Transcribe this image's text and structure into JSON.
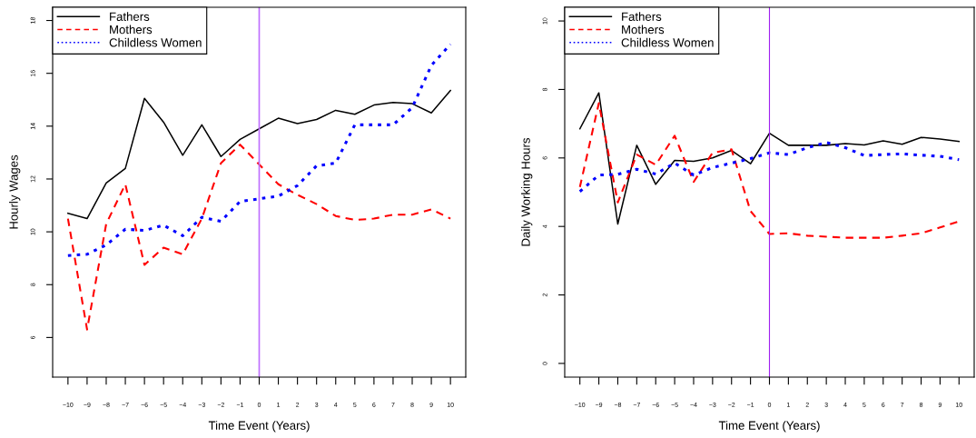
{
  "chart_data": [
    {
      "type": "line",
      "xlabel": "Time Event (Years)",
      "ylabel": "Hourly Wages",
      "x": [
        -10,
        -9,
        -8,
        -7,
        -6,
        -5,
        -4,
        -3,
        -2,
        -1,
        0,
        1,
        2,
        3,
        4,
        5,
        6,
        7,
        8,
        9,
        10
      ],
      "xlim": [
        -10.8,
        10.8
      ],
      "xticks": [
        {
          "value": -10,
          "label": "−10"
        },
        {
          "value": -9,
          "label": "−9"
        },
        {
          "value": -8,
          "label": "−8"
        },
        {
          "value": -7,
          "label": "−7"
        },
        {
          "value": -6,
          "label": "−6"
        },
        {
          "value": -5,
          "label": "−5"
        },
        {
          "value": -4,
          "label": "−4"
        },
        {
          "value": -3,
          "label": "−3"
        },
        {
          "value": -2,
          "label": "−2"
        },
        {
          "value": -1,
          "label": "−1"
        },
        0,
        1,
        2,
        3,
        4,
        5,
        6,
        7,
        8,
        9,
        10
      ],
      "ylim": [
        4.5,
        18.5
      ],
      "yticks": [
        6,
        8,
        10,
        12,
        14,
        16,
        18
      ],
      "legend": "top left",
      "grid": false,
      "ref_lines": [
        {
          "axis": "x",
          "value": 0,
          "color": "#bf6fff"
        }
      ],
      "series": [
        {
          "name": "Fathers",
          "color": "#000000",
          "line_style": "solid",
          "values": [
            10.7,
            10.5,
            11.85,
            12.4,
            15.05,
            14.15,
            12.9,
            14.05,
            12.85,
            13.5,
            13.9,
            14.3,
            14.1,
            14.25,
            14.6,
            14.45,
            14.8,
            14.9,
            14.85,
            14.5,
            15.35
          ]
        },
        {
          "name": "Mothers",
          "color": "#ff0000",
          "line_style": "dashed",
          "values": [
            10.5,
            6.3,
            10.3,
            11.8,
            8.75,
            9.4,
            9.15,
            10.5,
            12.6,
            13.3,
            12.55,
            11.8,
            11.4,
            11.05,
            10.6,
            10.45,
            10.5,
            10.65,
            10.65,
            10.85,
            10.5
          ]
        },
        {
          "name": "Childless Women",
          "color": "#0000ff",
          "line_style": "dotted",
          "values": [
            9.1,
            9.15,
            9.5,
            10.1,
            10.05,
            10.25,
            9.85,
            10.55,
            10.4,
            11.15,
            11.25,
            11.35,
            11.75,
            12.5,
            12.6,
            14.05,
            14.05,
            14.05,
            14.7,
            16.3,
            17.1
          ]
        }
      ]
    },
    {
      "type": "line",
      "xlabel": "Time Event (Years)",
      "ylabel": "Daily Working Hours",
      "x": [
        -10,
        -9,
        -8,
        -7,
        -6,
        -5,
        -4,
        -3,
        -2,
        -1,
        0,
        1,
        2,
        3,
        4,
        5,
        6,
        7,
        8,
        9,
        10
      ],
      "xlim": [
        -10.8,
        10.8
      ],
      "xticks": [
        {
          "value": -10,
          "label": "−10"
        },
        {
          "value": -9,
          "label": "−9"
        },
        {
          "value": -8,
          "label": "−8"
        },
        {
          "value": -7,
          "label": "−7"
        },
        {
          "value": -6,
          "label": "−6"
        },
        {
          "value": -5,
          "label": "−5"
        },
        {
          "value": -4,
          "label": "−4"
        },
        {
          "value": -3,
          "label": "−3"
        },
        {
          "value": -2,
          "label": "−2"
        },
        {
          "value": -1,
          "label": "−1"
        },
        0,
        1,
        2,
        3,
        4,
        5,
        6,
        7,
        8,
        9,
        10
      ],
      "ylim": [
        -0.4,
        10.4
      ],
      "yticks": [
        0,
        2,
        4,
        6,
        8,
        10
      ],
      "legend": "top left",
      "grid": false,
      "ref_lines": [
        {
          "axis": "x",
          "value": 0,
          "color": "#a020f0"
        }
      ],
      "series": [
        {
          "name": "Fathers",
          "color": "#000000",
          "line_style": "solid",
          "values": [
            6.85,
            7.9,
            4.07,
            6.37,
            5.23,
            5.93,
            5.9,
            6.0,
            6.22,
            5.83,
            6.72,
            6.37,
            6.37,
            6.37,
            6.42,
            6.38,
            6.5,
            6.4,
            6.6,
            6.55,
            6.48
          ]
        },
        {
          "name": "Mothers",
          "color": "#ff0000",
          "line_style": "dashed",
          "values": [
            5.15,
            7.6,
            4.7,
            6.1,
            5.8,
            6.65,
            5.3,
            6.15,
            6.25,
            4.45,
            3.78,
            3.8,
            3.73,
            3.7,
            3.67,
            3.67,
            3.67,
            3.73,
            3.8,
            3.97,
            4.15
          ]
        },
        {
          "name": "Childless Women",
          "color": "#0000ff",
          "line_style": "dotted",
          "values": [
            5.02,
            5.5,
            5.52,
            5.67,
            5.53,
            5.85,
            5.5,
            5.72,
            5.85,
            5.98,
            6.15,
            6.1,
            6.3,
            6.45,
            6.3,
            6.07,
            6.1,
            6.12,
            6.08,
            6.05,
            5.95
          ]
        }
      ]
    }
  ]
}
